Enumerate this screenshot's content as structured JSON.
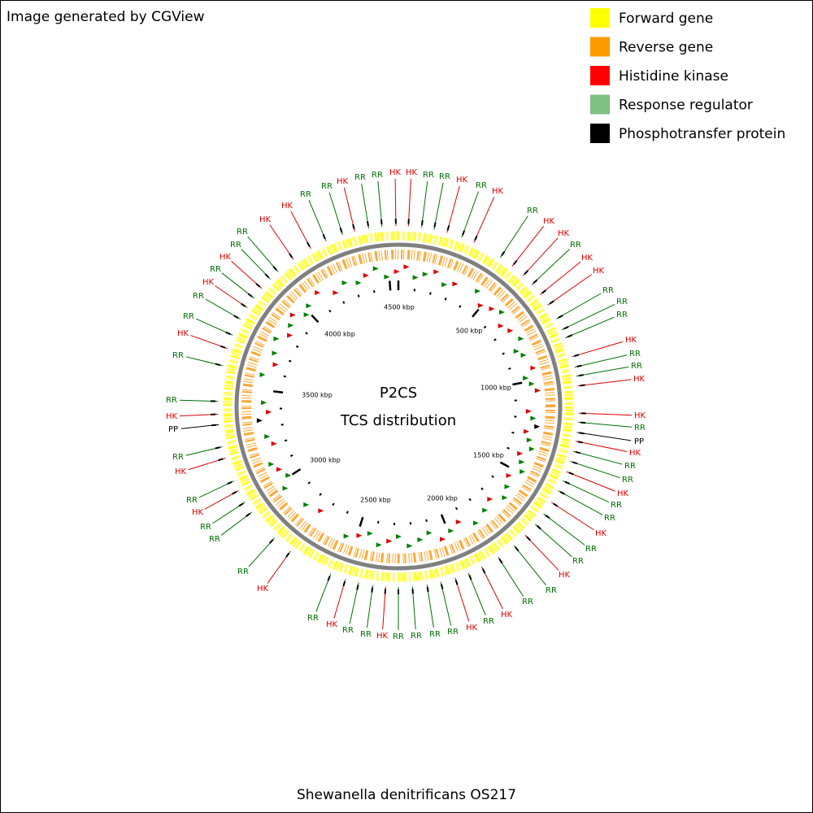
{
  "header": {
    "text": "Image generated by CGView"
  },
  "legend": [
    {
      "label": "Forward gene",
      "color": "#ffff00"
    },
    {
      "label": "Reverse gene",
      "color": "#ff9900"
    },
    {
      "label": "Histidine kinase",
      "color": "#ff0000"
    },
    {
      "label": "Response regulator",
      "color": "#80c080"
    },
    {
      "label": "Phosphotransfer protein",
      "color": "#000000"
    }
  ],
  "center": {
    "title": "P2CS",
    "subtitle": "TCS distribution"
  },
  "ticks": [
    "500 kbp",
    "1000 kbp",
    "1500 kbp",
    "2000 kbp",
    "2500 kbp",
    "3000 kbp",
    "3500 kbp",
    "4000 kbp",
    "4500 kbp"
  ],
  "labels": [
    "RR",
    "HK",
    "RR",
    "RR",
    "HK",
    "HK",
    "RR",
    "RR",
    "HK",
    "RR",
    "HK",
    "RR",
    "HK",
    "HK",
    "RR",
    "HK",
    "HK",
    "RR",
    "RR",
    "RR",
    "HK",
    "RR",
    "RR",
    "HK",
    "HK",
    "RR",
    "PP",
    "HK",
    "RR",
    "RR",
    "HK",
    "RR",
    "RR",
    "HK",
    "RR",
    "RR",
    "HK",
    "RR",
    "RR",
    "HK",
    "RR",
    "HK",
    "RR",
    "RR",
    "RR",
    "RR",
    "HK",
    "RR",
    "RR",
    "HK",
    "RR",
    "HK",
    "RR",
    "RR",
    "RR",
    "HK",
    "RR",
    "HK",
    "RR",
    "PP",
    "HK",
    "RR",
    "RR",
    "HK",
    "RR",
    "RR",
    "HK",
    "RR",
    "HK",
    "RR",
    "RR",
    "HK",
    "HK",
    "RR"
  ],
  "footer": {
    "title": "Shewanella denitrificans OS217"
  }
}
